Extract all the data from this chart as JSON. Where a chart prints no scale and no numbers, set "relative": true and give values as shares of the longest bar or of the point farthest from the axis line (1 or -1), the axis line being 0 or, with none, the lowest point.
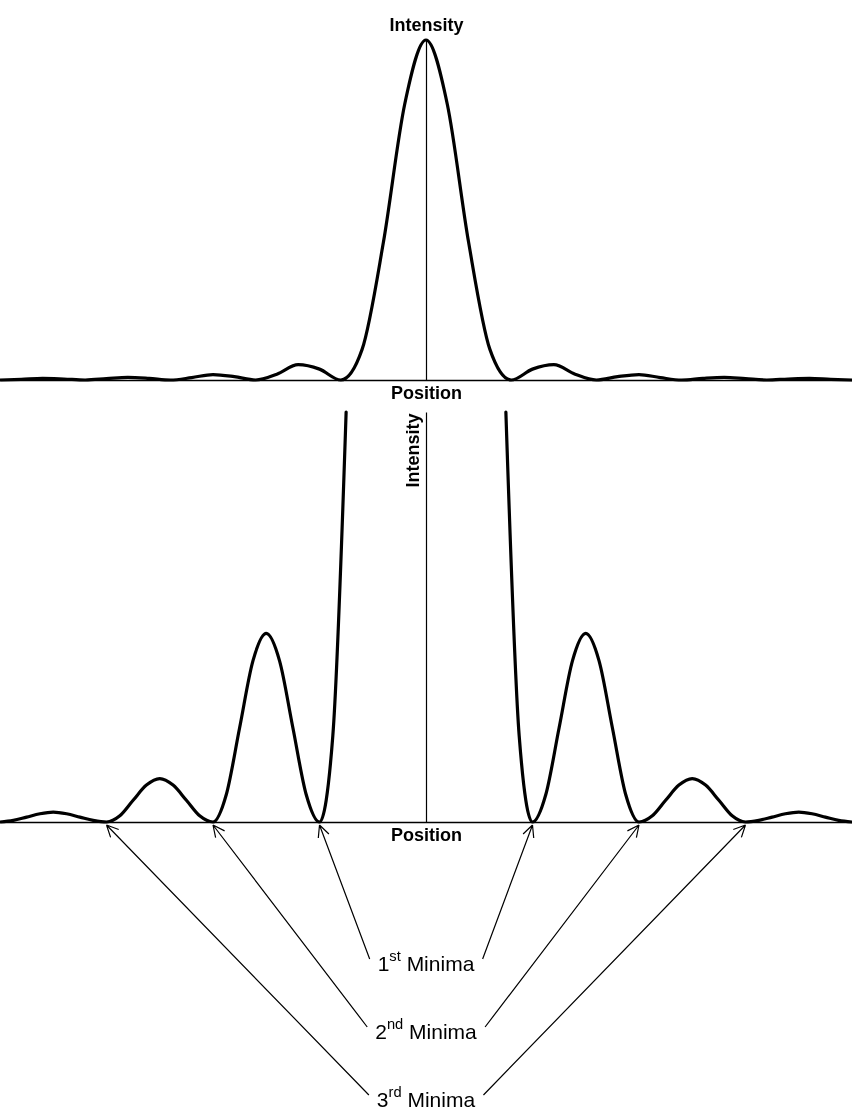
{
  "chart_data": [
    {
      "type": "line",
      "xlabel": "Position",
      "ylabel": "Intensity",
      "relative": true,
      "tick_labels": false,
      "categories": [
        null,
        null,
        null,
        null,
        null,
        null,
        null,
        null,
        null,
        null,
        null,
        null,
        null,
        null,
        null,
        null,
        null,
        null,
        null,
        null,
        null,
        null,
        null,
        null,
        null,
        null,
        null,
        null,
        null,
        null,
        null,
        null,
        null,
        null,
        null,
        null,
        null,
        null,
        null,
        null,
        null
      ],
      "series": [
        {
          "color": "#000000",
          "values": [
            0,
            0.002,
            0.005,
            0.003,
            0,
            0.004,
            0.008,
            0.005,
            0,
            0.007,
            0.016,
            0.01,
            0,
            0.017,
            0.045,
            0.032,
            0,
            0.09,
            0.405,
            0.811,
            1,
            0.811,
            0.405,
            0.09,
            0,
            0.032,
            0.045,
            0.017,
            0,
            0.01,
            0.016,
            0.007,
            0,
            0.005,
            0.008,
            0.004,
            0,
            0.003,
            0.005,
            0.002,
            0
          ]
        }
      ]
    },
    {
      "type": "line",
      "xlabel": "Position",
      "ylabel": "Intensity",
      "relative": true,
      "tick_labels": false,
      "categories": [
        null,
        null,
        null,
        null,
        null,
        null,
        null,
        null,
        null,
        null,
        null,
        null,
        null,
        null,
        null,
        null,
        null,
        null,
        null,
        null,
        null,
        null,
        null,
        null,
        null,
        null,
        null,
        null,
        null,
        null,
        null,
        null,
        null,
        null,
        null,
        null,
        null,
        null,
        null,
        null,
        null,
        null,
        null,
        null,
        null,
        null,
        null,
        null,
        null,
        null,
        null,
        null,
        null,
        null,
        null,
        null,
        null,
        null,
        null,
        null,
        null,
        null,
        null,
        null,
        null
      ],
      "series": [
        {
          "color": "#000000",
          "values": [
            0,
            0.004,
            0.012,
            0.02,
            0.024,
            0.02,
            0.012,
            0.004,
            0,
            0.015,
            0.053,
            0.09,
            0.106,
            0.09,
            0.053,
            0.015,
            0,
            0.067,
            0.23,
            0.393,
            0.46,
            0.393,
            0.23,
            0.067,
            0,
            0.21,
            1,
            null,
            null,
            null,
            null,
            null,
            null,
            null,
            null,
            null,
            null,
            null,
            1,
            0.21,
            0,
            0.067,
            0.23,
            0.393,
            0.46,
            0.393,
            0.23,
            0.067,
            0,
            0.015,
            0.053,
            0.09,
            0.106,
            0.09,
            0.053,
            0.015,
            0,
            0.004,
            0.012,
            0.02,
            0.024,
            0.02,
            0.012,
            0.004,
            0
          ]
        }
      ],
      "annotations": [
        "1$^{st}$ Minima",
        "2$^{nd}$ Minima",
        "3$^{rd}$ Minima"
      ]
    }
  ]
}
